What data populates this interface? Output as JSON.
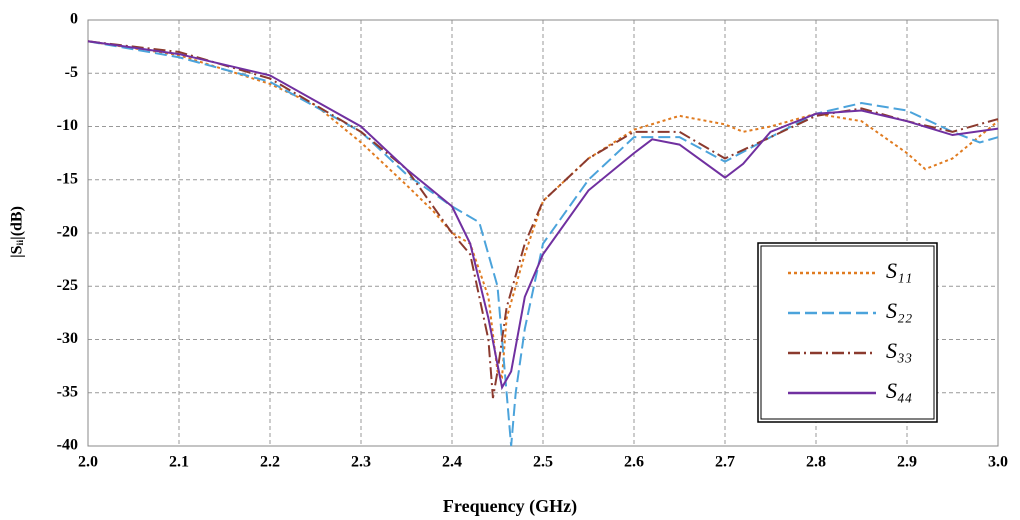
{
  "chart_data": {
    "type": "line",
    "xlabel": "Frequency (GHz)",
    "ylabel": "|Sᵢᵢ|(dB)",
    "xlim": [
      2.0,
      3.0
    ],
    "ylim": [
      -40,
      0
    ],
    "xticks": [
      {
        "value": 2.0,
        "label": "2.0"
      },
      {
        "value": 2.1,
        "label": "2.1"
      },
      {
        "value": 2.2,
        "label": "2.2"
      },
      {
        "value": 2.3,
        "label": "2.3"
      },
      {
        "value": 2.4,
        "label": "2.4"
      },
      {
        "value": 2.5,
        "label": "2.5"
      },
      {
        "value": 2.6,
        "label": "2.6"
      },
      {
        "value": 2.7,
        "label": "2.7"
      },
      {
        "value": 2.8,
        "label": "2.8"
      },
      {
        "value": 2.9,
        "label": "2.9"
      },
      {
        "value": 3.0,
        "label": "3.0"
      }
    ],
    "yticks": [
      0,
      -5,
      -10,
      -15,
      -20,
      -25,
      -30,
      -35,
      -40
    ],
    "grid": true,
    "legend": "lower right",
    "series": [
      {
        "name": "S₁₁",
        "color": "#e07b20",
        "dash": "3,3",
        "x": [
          2.0,
          2.1,
          2.2,
          2.25,
          2.3,
          2.35,
          2.38,
          2.4,
          2.42,
          2.44,
          2.45,
          2.455,
          2.46,
          2.48,
          2.5,
          2.55,
          2.6,
          2.65,
          2.7,
          2.72,
          2.75,
          2.8,
          2.85,
          2.9,
          2.92,
          2.95,
          3.0
        ],
        "values": [
          -2,
          -3.3,
          -6,
          -8,
          -11.5,
          -15.5,
          -18,
          -20,
          -21,
          -26,
          -33,
          -33.5,
          -28,
          -22,
          -17,
          -13,
          -10.3,
          -9,
          -9.8,
          -10.5,
          -10,
          -8.8,
          -9.5,
          -12.5,
          -14,
          -13,
          -9.5
        ]
      },
      {
        "name": "S₂₂",
        "color": "#4ba3db",
        "dash": "12,5",
        "x": [
          2.0,
          2.1,
          2.2,
          2.3,
          2.35,
          2.4,
          2.43,
          2.45,
          2.46,
          2.465,
          2.47,
          2.48,
          2.5,
          2.55,
          2.6,
          2.65,
          2.7,
          2.75,
          2.8,
          2.85,
          2.9,
          2.95,
          2.98,
          3.0
        ],
        "values": [
          -2,
          -3.5,
          -5.8,
          -10.5,
          -14.5,
          -17.5,
          -19,
          -25,
          -35,
          -40,
          -35,
          -29,
          -21,
          -15,
          -11,
          -11,
          -13.3,
          -11,
          -8.8,
          -7.8,
          -8.5,
          -10.5,
          -11.5,
          -11
        ]
      },
      {
        "name": "S₃₃",
        "color": "#8b3a2e",
        "dash": "12,4,2,4",
        "x": [
          2.0,
          2.1,
          2.2,
          2.3,
          2.35,
          2.4,
          2.42,
          2.44,
          2.445,
          2.45,
          2.46,
          2.48,
          2.5,
          2.55,
          2.6,
          2.65,
          2.7,
          2.75,
          2.8,
          2.85,
          2.9,
          2.95,
          3.0
        ],
        "values": [
          -2,
          -3,
          -5.5,
          -10.5,
          -14,
          -20,
          -22,
          -30,
          -35.5,
          -33,
          -27,
          -21,
          -17,
          -13,
          -10.5,
          -10.5,
          -13,
          -11,
          -9,
          -8.3,
          -9.5,
          -10.5,
          -9.3
        ]
      },
      {
        "name": "S₄₄",
        "color": "#7030a0",
        "dash": "none",
        "x": [
          2.0,
          2.1,
          2.2,
          2.3,
          2.35,
          2.4,
          2.42,
          2.44,
          2.455,
          2.465,
          2.48,
          2.5,
          2.55,
          2.6,
          2.62,
          2.65,
          2.7,
          2.72,
          2.75,
          2.8,
          2.85,
          2.9,
          2.95,
          3.0
        ],
        "values": [
          -2,
          -3.2,
          -5.2,
          -10,
          -14,
          -17.5,
          -21,
          -28,
          -34.5,
          -33,
          -26,
          -22,
          -16,
          -12.5,
          -11.2,
          -11.7,
          -14.8,
          -13.5,
          -10.5,
          -8.8,
          -8.5,
          -9.5,
          -10.8,
          -10.2
        ]
      }
    ]
  }
}
